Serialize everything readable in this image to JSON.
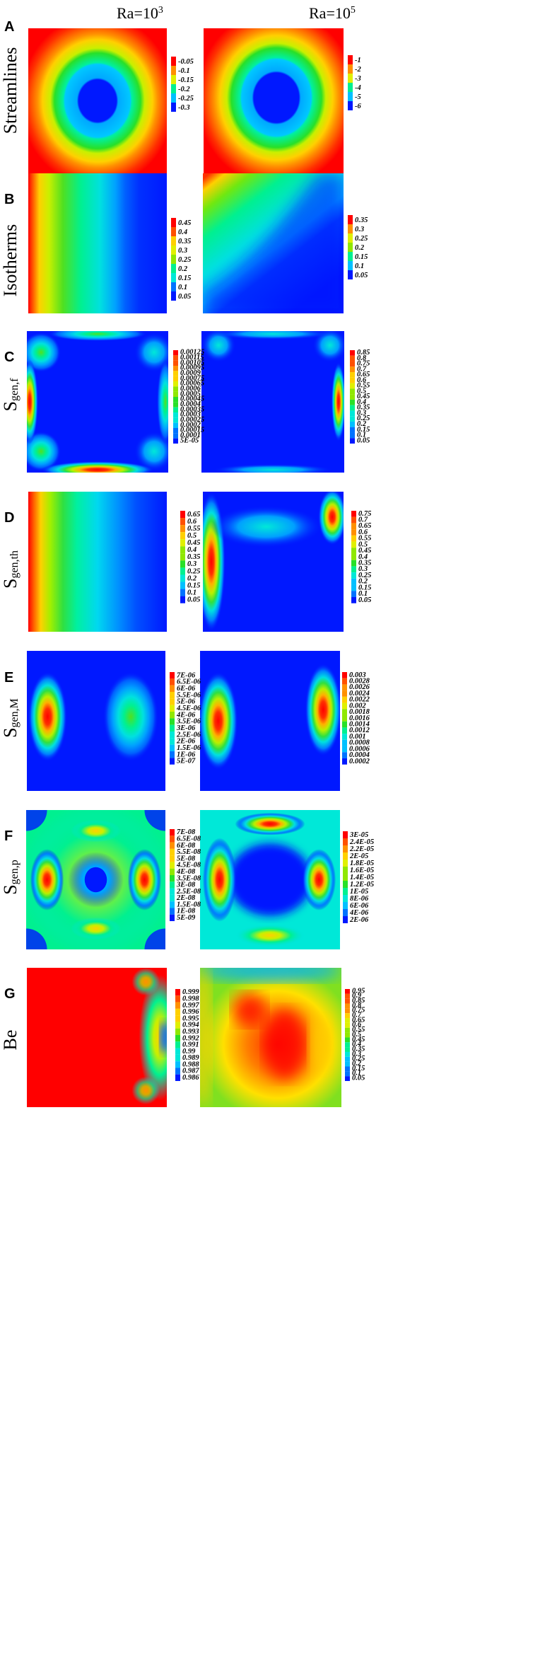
{
  "columns": [
    {
      "base": "Ra=10",
      "exp": "3"
    },
    {
      "base": "Ra=10",
      "exp": "5"
    }
  ],
  "palette": [
    "#0018ff",
    "#0072ff",
    "#00c0ff",
    "#00e8d8",
    "#00f090",
    "#28e028",
    "#90e800",
    "#e0f000",
    "#ffd000",
    "#ff9000",
    "#ff5000",
    "#ff0000"
  ],
  "rows": [
    {
      "letter": "A",
      "title": "Streamlines",
      "sub": "",
      "left": {
        "legend": [
          "-0.05",
          "-0.1",
          "-0.15",
          "-0.2",
          "-0.25",
          "-0.3"
        ]
      },
      "right": {
        "legend": [
          "-1",
          "-2",
          "-3",
          "-4",
          "-5",
          "-6"
        ]
      }
    },
    {
      "letter": "B",
      "title": "Isotherms",
      "sub": "",
      "left": {
        "legend": [
          "0.45",
          "0.4",
          "0.35",
          "0.3",
          "0.25",
          "0.2",
          "0.15",
          "0.1",
          "0.05"
        ]
      },
      "right": {
        "legend": [
          "0.35",
          "0.3",
          "0.25",
          "0.2",
          "0.15",
          "0.1",
          "0.05"
        ]
      }
    },
    {
      "letter": "C",
      "title": "S",
      "sub": "gen,f",
      "left": {
        "legend": [
          "0.00125",
          "0.00115",
          "0.00105",
          "0.00095",
          "0.0009",
          "0.00075",
          "0.00065",
          "0.0006",
          "0.0005",
          "0.00045",
          "0.0004",
          "0.00035",
          "0.0003",
          "0.00025",
          "0.0002",
          "0.00015",
          "0.0001",
          "5E-05"
        ]
      },
      "right": {
        "legend": [
          "0.85",
          "0.8",
          "0.75",
          "0.7",
          "0.65",
          "0.6",
          "0.55",
          "0.5",
          "0.45",
          "0.4",
          "0.35",
          "0.3",
          "0.25",
          "0.2",
          "0.15",
          "0.1",
          "0.05"
        ]
      }
    },
    {
      "letter": "D",
      "title": "S",
      "sub": "gen,th",
      "left": {
        "legend": [
          "0.65",
          "0.6",
          "0.55",
          "0.5",
          "0.45",
          "0.4",
          "0.35",
          "0.3",
          "0.25",
          "0.2",
          "0.15",
          "0.1",
          "0.05"
        ]
      },
      "right": {
        "legend": [
          "0.75",
          "0.7",
          "0.65",
          "0.6",
          "0.55",
          "0.5",
          "0.45",
          "0.4",
          "0.35",
          "0.3",
          "0.25",
          "0.2",
          "0.15",
          "0.1",
          "0.05"
        ]
      }
    },
    {
      "letter": "E",
      "title": "S",
      "sub": "gen,M",
      "left": {
        "legend": [
          "7E-06",
          "6.5E-06",
          "6E-06",
          "5.5E-06",
          "5E-06",
          "4.5E-06",
          "4E-06",
          "3.5E-06",
          "3E-06",
          "2.5E-06",
          "2E-06",
          "1.5E-06",
          "1E-06",
          "5E-07"
        ]
      },
      "right": {
        "legend": [
          "0.003",
          "0.0028",
          "0.0026",
          "0.0024",
          "0.0022",
          "0.002",
          "0.0018",
          "0.0016",
          "0.0014",
          "0.0012",
          "0.001",
          "0.0008",
          "0.0006",
          "0.0004",
          "0.0002"
        ]
      }
    },
    {
      "letter": "F",
      "title": "S",
      "sub": "gen,p",
      "left": {
        "legend": [
          "7E-08",
          "6.5E-08",
          "6E-08",
          "5.5E-08",
          "5E-08",
          "4.5E-08",
          "4E-08",
          "3.5E-08",
          "3E-08",
          "2.5E-08",
          "2E-08",
          "1.5E-08",
          "1E-08",
          "5E-09"
        ]
      },
      "right": {
        "legend": [
          "3E-05",
          "2.4E-05",
          "2.2E-05",
          "2E-05",
          "1.8E-05",
          "1.6E-05",
          "1.4E-05",
          "1.2E-05",
          "1E-05",
          "8E-06",
          "6E-06",
          "4E-06",
          "2E-06"
        ]
      }
    },
    {
      "letter": "G",
      "title": "Be",
      "sub": "",
      "left": {
        "legend": [
          "0.999",
          "0.998",
          "0.997",
          "0.996",
          "0.995",
          "0.994",
          "0.993",
          "0.992",
          "0.991",
          "0.99",
          "0.989",
          "0.988",
          "0.987",
          "0.986"
        ]
      },
      "right": {
        "legend": [
          "0.95",
          "0.9",
          "0.85",
          "0.8",
          "0.75",
          "0.7",
          "0.65",
          "0.6",
          "0.55",
          "0.5",
          "0.45",
          "0.4",
          "0.35",
          "0.3",
          "0.25",
          "0.2",
          "0.15",
          "0.1",
          "0.05"
        ]
      }
    }
  ],
  "chart_data": {
    "type": "heatmap",
    "panels": [
      {
        "row": "A",
        "col": "Ra=10^3",
        "quantity": "Streamlines",
        "levels": [
          -0.05,
          -0.1,
          -0.15,
          -0.2,
          -0.25,
          -0.3
        ]
      },
      {
        "row": "A",
        "col": "Ra=10^5",
        "quantity": "Streamlines",
        "levels": [
          -1,
          -2,
          -3,
          -4,
          -5,
          -6
        ]
      },
      {
        "row": "B",
        "col": "Ra=10^3",
        "quantity": "Isotherms",
        "levels": [
          0.45,
          0.4,
          0.35,
          0.3,
          0.25,
          0.2,
          0.15,
          0.1,
          0.05
        ]
      },
      {
        "row": "B",
        "col": "Ra=10^5",
        "quantity": "Isotherms",
        "levels": [
          0.35,
          0.3,
          0.25,
          0.2,
          0.15,
          0.1,
          0.05
        ]
      },
      {
        "row": "C",
        "col": "Ra=10^3",
        "quantity": "S_gen,f",
        "levels": [
          0.00125,
          0.00115,
          0.00105,
          0.00095,
          0.0009,
          0.00075,
          0.00065,
          0.0006,
          0.0005,
          0.00045,
          0.0004,
          0.00035,
          0.0003,
          0.00025,
          0.0002,
          0.00015,
          0.0001,
          5e-05
        ]
      },
      {
        "row": "C",
        "col": "Ra=10^5",
        "quantity": "S_gen,f",
        "levels": [
          0.85,
          0.8,
          0.75,
          0.7,
          0.65,
          0.6,
          0.55,
          0.5,
          0.45,
          0.4,
          0.35,
          0.3,
          0.25,
          0.2,
          0.15,
          0.1,
          0.05
        ]
      },
      {
        "row": "D",
        "col": "Ra=10^3",
        "quantity": "S_gen,th",
        "levels": [
          0.65,
          0.6,
          0.55,
          0.5,
          0.45,
          0.4,
          0.35,
          0.3,
          0.25,
          0.2,
          0.15,
          0.1,
          0.05
        ]
      },
      {
        "row": "D",
        "col": "Ra=10^5",
        "quantity": "S_gen,th",
        "levels": [
          0.75,
          0.7,
          0.65,
          0.6,
          0.55,
          0.5,
          0.45,
          0.4,
          0.35,
          0.3,
          0.25,
          0.2,
          0.15,
          0.1,
          0.05
        ]
      },
      {
        "row": "E",
        "col": "Ra=10^3",
        "quantity": "S_gen,M",
        "levels": [
          7e-06,
          6.5e-06,
          6e-06,
          5.5e-06,
          5e-06,
          4.5e-06,
          4e-06,
          3.5e-06,
          3e-06,
          2.5e-06,
          2e-06,
          1.5e-06,
          1e-06,
          5e-07
        ]
      },
      {
        "row": "E",
        "col": "Ra=10^5",
        "quantity": "S_gen,M",
        "levels": [
          0.003,
          0.0028,
          0.0026,
          0.0024,
          0.0022,
          0.002,
          0.0018,
          0.0016,
          0.0014,
          0.0012,
          0.001,
          0.0008,
          0.0006,
          0.0004,
          0.0002
        ]
      },
      {
        "row": "F",
        "col": "Ra=10^3",
        "quantity": "S_gen,p",
        "levels": [
          7e-08,
          6.5e-08,
          6e-08,
          5.5e-08,
          5e-08,
          4.5e-08,
          4e-08,
          3.5e-08,
          3e-08,
          2.5e-08,
          2e-08,
          1.5e-08,
          1e-08,
          5e-09
        ]
      },
      {
        "row": "F",
        "col": "Ra=10^5",
        "quantity": "S_gen,p",
        "levels": [
          3e-05,
          2.4e-05,
          2.2e-05,
          2e-05,
          1.8e-05,
          1.6e-05,
          1.4e-05,
          1.2e-05,
          1e-05,
          8e-06,
          6e-06,
          4e-06,
          2e-06
        ]
      },
      {
        "row": "G",
        "col": "Ra=10^3",
        "quantity": "Be",
        "levels": [
          0.999,
          0.998,
          0.997,
          0.996,
          0.995,
          0.994,
          0.993,
          0.992,
          0.991,
          0.99,
          0.989,
          0.988,
          0.987,
          0.986
        ]
      },
      {
        "row": "G",
        "col": "Ra=10^5",
        "quantity": "Be",
        "levels": [
          0.95,
          0.9,
          0.85,
          0.8,
          0.75,
          0.7,
          0.65,
          0.6,
          0.55,
          0.5,
          0.45,
          0.4,
          0.35,
          0.3,
          0.25,
          0.2,
          0.15,
          0.1,
          0.05
        ]
      }
    ]
  }
}
